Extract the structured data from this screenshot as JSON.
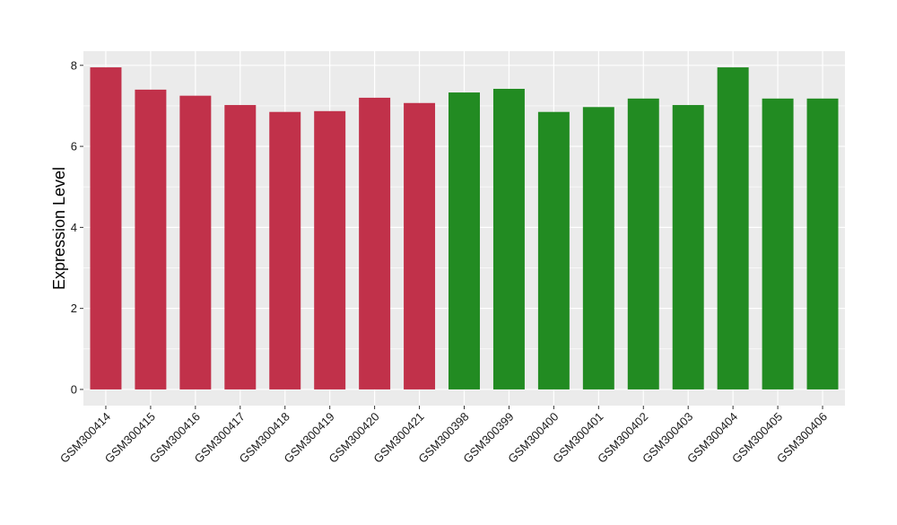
{
  "chart_data": {
    "type": "bar",
    "title": "",
    "xlabel": "",
    "ylabel": "Expression Level",
    "ylim": [
      -0.4,
      8.35
    ],
    "yticks": [
      0,
      2,
      4,
      6,
      8
    ],
    "grid": true,
    "legend": "none",
    "panel_background": "#ebebeb",
    "grid_color": "#ffffff",
    "categories": [
      "GSM300414",
      "GSM300415",
      "GSM300416",
      "GSM300417",
      "GSM300418",
      "GSM300419",
      "GSM300420",
      "GSM300421",
      "GSM300398",
      "GSM300399",
      "GSM300400",
      "GSM300401",
      "GSM300402",
      "GSM300403",
      "GSM300404",
      "GSM300405",
      "GSM300406"
    ],
    "values": [
      7.95,
      7.4,
      7.25,
      7.02,
      6.85,
      6.87,
      7.2,
      7.07,
      7.33,
      7.42,
      6.85,
      6.97,
      7.18,
      7.02,
      7.95,
      7.18,
      7.18
    ],
    "colors": [
      "#c1314a",
      "#c1314a",
      "#c1314a",
      "#c1314a",
      "#c1314a",
      "#c1314a",
      "#c1314a",
      "#c1314a",
      "#228b22",
      "#228b22",
      "#228b22",
      "#228b22",
      "#228b22",
      "#228b22",
      "#228b22",
      "#228b22",
      "#228b22"
    ]
  }
}
